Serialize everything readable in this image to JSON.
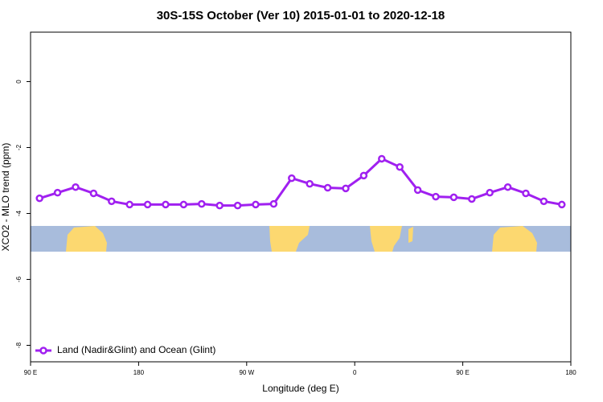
{
  "chart_data": {
    "type": "line",
    "title": "30S-15S October (Ver 10)   2015-01-01 to 2020-12-18",
    "x_label": "Longitude (deg E)",
    "y_label": "XCO2 - MLO trend (ppm)",
    "x": [
      97.5,
      112.5,
      127.5,
      142.5,
      157.5,
      172.5,
      187.5,
      202.5,
      217.5,
      232.5,
      247.5,
      262.5,
      277.5,
      292.5,
      307.5,
      322.5,
      337.5,
      352.5,
      367.5,
      382.5,
      397.5,
      412.5,
      427.5,
      442.5,
      457.5,
      472.5,
      487.5,
      502.5,
      517.5,
      532.5
    ],
    "series": [
      {
        "name": "Land (Nadir&Glint) and Ocean (Glint)",
        "color": "#a020f0",
        "values": [
          -3.54,
          -3.37,
          -3.2,
          -3.39,
          -3.63,
          -3.73,
          -3.73,
          -3.73,
          -3.73,
          -3.71,
          -3.76,
          -3.76,
          -3.73,
          -3.71,
          -2.93,
          -3.1,
          -3.22,
          -3.24,
          -2.85,
          -2.34,
          -2.59,
          -3.29,
          -3.49,
          -3.51,
          -3.56,
          -3.37,
          -3.2,
          -3.39,
          -3.63,
          -3.73
        ]
      }
    ],
    "xlim": [
      90,
      540
    ],
    "xticks": [
      {
        "value": 90,
        "label": "90 E"
      },
      {
        "value": 180,
        "label": "180"
      },
      {
        "value": 270,
        "label": "90 W"
      },
      {
        "value": 360,
        "label": "0"
      },
      {
        "value": 450,
        "label": "90 E"
      },
      {
        "value": 540,
        "label": "180"
      }
    ],
    "ylim": [
      -8.5,
      1.5
    ],
    "yticks": [
      0,
      -2,
      -4,
      -6,
      -8
    ],
    "legend": "bottom-left"
  }
}
